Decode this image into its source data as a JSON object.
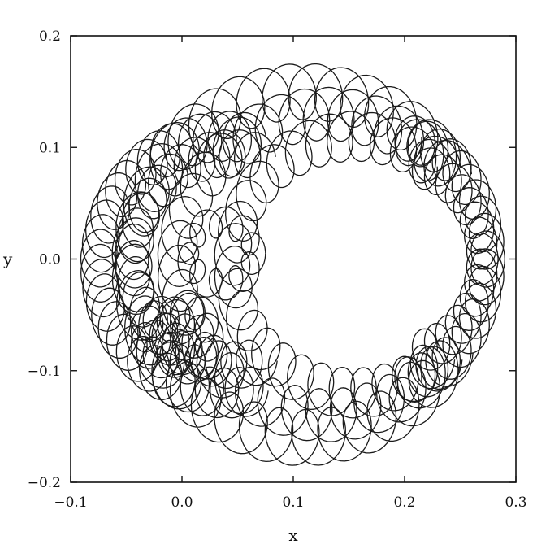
{
  "chart_data": {
    "type": "line",
    "title": "",
    "xlabel": "x",
    "ylabel": "y",
    "xlim": [
      -0.1,
      0.3
    ],
    "ylim": [
      -0.2,
      0.2
    ],
    "xticks": [
      -0.1,
      0.0,
      0.1,
      0.2,
      0.3
    ],
    "yticks": [
      -0.2,
      -0.1,
      0.0,
      0.1,
      0.2
    ],
    "xtick_labels": [
      "−0.1",
      "0.0",
      "0.1",
      "0.2",
      "0.3"
    ],
    "ytick_labels": [
      "−0.2",
      "−0.1",
      "0.0",
      "0.1",
      "0.2"
    ],
    "grid": false,
    "line_color": "#1a1a1a",
    "series": [
      {
        "description_of_trajectory_family": "",
        "curves": [
          {
            "kind": "epicycle",
            "center": [
              0.11,
              -0.005
            ],
            "rx": 0.155,
            "ry": 0.155,
            "r_loop": 0.018,
            "loops": 34,
            "t_from": 0.55,
            "t_to": 5.75
          },
          {
            "kind": "epicycle",
            "center": [
              0.13,
              -0.005
            ],
            "rx": 0.135,
            "ry": 0.135,
            "r_loop": 0.017,
            "loops": 30,
            "t_from": 0.7,
            "t_to": 5.6
          },
          {
            "kind": "epicycle",
            "center": [
              0.155,
              -0.005
            ],
            "rx": 0.11,
            "ry": 0.115,
            "r_loop": 0.016,
            "loops": 26,
            "t_from": 0.85,
            "t_to": 5.45
          },
          {
            "kind": "epicycle",
            "center": [
              0.19,
              0.0
            ],
            "rx": 0.085,
            "ry": 0.11,
            "r_loop": 0.015,
            "loops": 20,
            "t_from": -1.45,
            "t_to": 1.45
          },
          {
            "kind": "epicycle",
            "center": [
              0.2,
              0.0
            ],
            "rx": 0.07,
            "ry": 0.085,
            "r_loop": 0.014,
            "loops": 16,
            "t_from": -1.35,
            "t_to": 1.35
          },
          {
            "kind": "epicycle",
            "center": [
              0.04,
              -0.005
            ],
            "rx": 0.115,
            "ry": 0.115,
            "r_loop": 0.016,
            "loops": 30,
            "t_from": 1.4,
            "t_to": 4.9
          },
          {
            "kind": "epicycle",
            "center": [
              0.045,
              0.0
            ],
            "rx": 0.09,
            "ry": 0.095,
            "r_loop": 0.015,
            "loops": 24,
            "t_from": 1.3,
            "t_to": 5.0
          },
          {
            "kind": "epicycle",
            "center": [
              0.035,
              0.005
            ],
            "rx": 0.03,
            "ry": 0.028,
            "r_loop": 0.01,
            "loops": 10,
            "t_from": 0.0,
            "t_to": 6.28
          },
          {
            "kind": "epicycle",
            "center": [
              0.005,
              -0.07
            ],
            "rx": 0.02,
            "ry": 0.025,
            "r_loop": 0.012,
            "loops": 9,
            "t_from": 0.0,
            "t_to": 6.28
          },
          {
            "kind": "epicycle",
            "center": [
              -0.015,
              -0.07
            ],
            "rx": 0.02,
            "ry": 0.02,
            "r_loop": 0.012,
            "loops": 8,
            "t_from": 0.0,
            "t_to": 6.28
          }
        ]
      }
    ]
  }
}
